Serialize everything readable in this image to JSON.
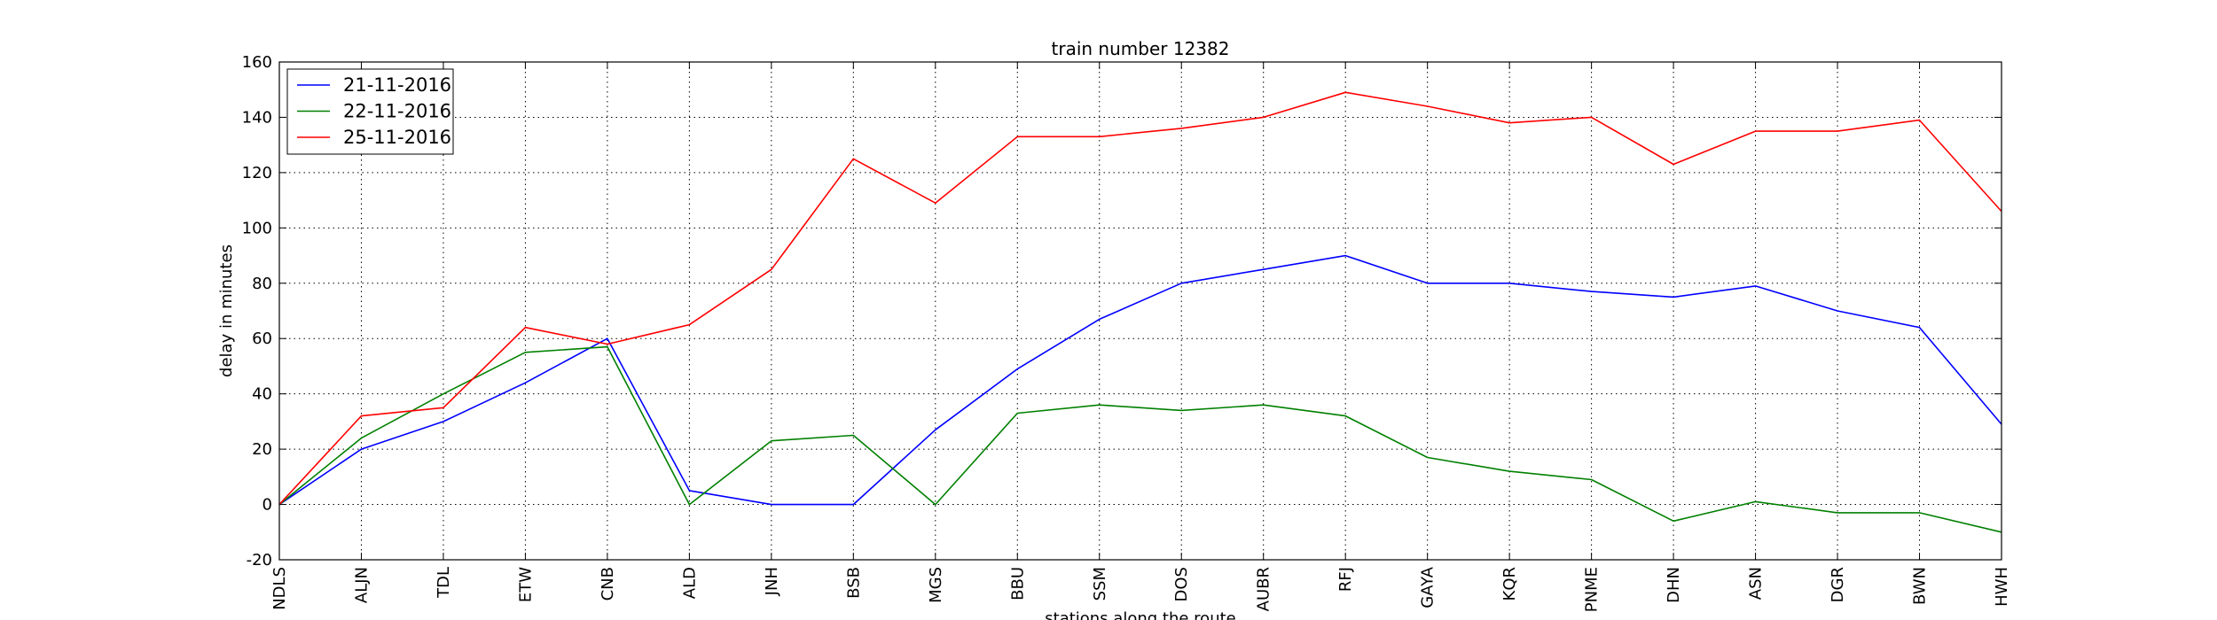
{
  "chart_data": {
    "type": "line",
    "title": "train number 12382",
    "xlabel": "stations along the route",
    "ylabel": "delay in minutes",
    "ylim": [
      -20,
      160
    ],
    "yticks": [
      -20,
      0,
      20,
      40,
      60,
      80,
      100,
      120,
      140,
      160
    ],
    "grid": true,
    "legend_position": "top-left",
    "categories": [
      "NDLS",
      "ALJN",
      "TDL",
      "ETW",
      "CNB",
      "ALD",
      "JNH",
      "BSB",
      "MGS",
      "BBU",
      "SSM",
      "DOS",
      "AUBR",
      "RFJ",
      "GAYA",
      "KQR",
      "PNME",
      "DHN",
      "ASN",
      "DGR",
      "BWN",
      "HWH"
    ],
    "series": [
      {
        "name": "21-11-2016",
        "color": "#0000ff",
        "values": [
          0,
          20,
          30,
          44,
          60,
          5,
          0,
          0,
          27,
          49,
          67,
          80,
          85,
          90,
          80,
          80,
          77,
          75,
          79,
          70,
          64,
          29
        ]
      },
      {
        "name": "22-11-2016",
        "color": "#008000",
        "values": [
          0,
          24,
          40,
          55,
          57,
          0,
          23,
          25,
          0,
          33,
          36,
          34,
          36,
          32,
          17,
          12,
          9,
          -6,
          1,
          -3,
          -3,
          -10
        ]
      },
      {
        "name": "25-11-2016",
        "color": "#ff0000",
        "values": [
          0,
          32,
          35,
          64,
          58,
          65,
          85,
          125,
          109,
          133,
          133,
          136,
          140,
          149,
          144,
          138,
          140,
          123,
          135,
          135,
          139,
          106
        ]
      }
    ]
  }
}
